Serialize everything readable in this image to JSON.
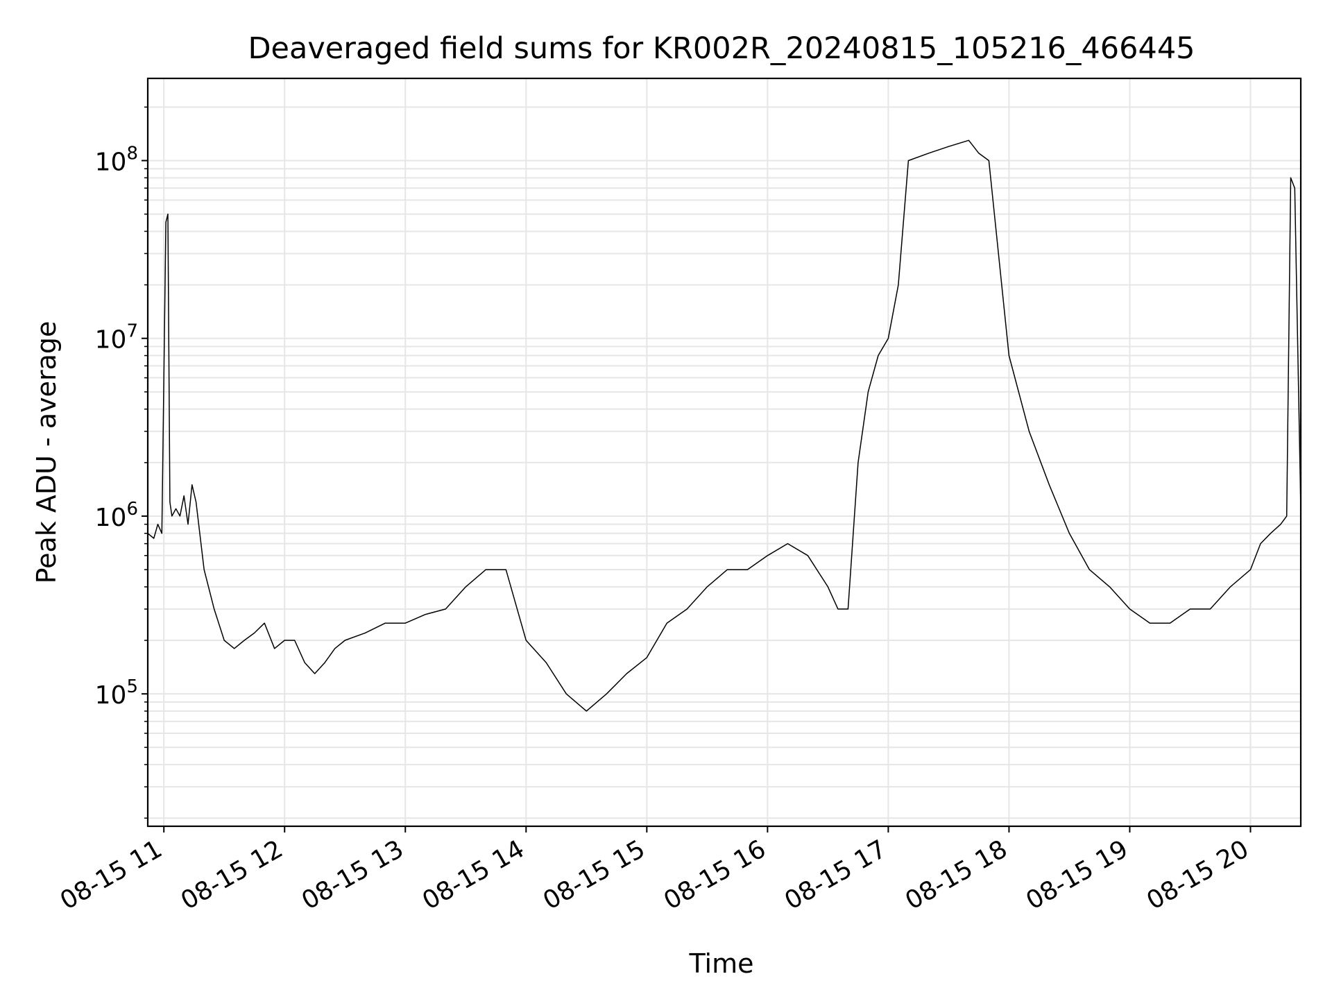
{
  "chart_data": {
    "type": "line",
    "title": "Deaveraged field sums for KR002R_20240815_105216_466445",
    "xlabel": "Time",
    "ylabel": "Peak ADU - average",
    "yscale": "log",
    "xlim": [
      "08-15 10:52",
      "08-15 20:25"
    ],
    "ylim": [
      18000,
      290000000
    ],
    "x_ticks": [
      "08-15 11",
      "08-15 12",
      "08-15 13",
      "08-15 14",
      "08-15 15",
      "08-15 16",
      "08-15 17",
      "08-15 18",
      "08-15 19",
      "08-15 20"
    ],
    "y_ticks": [
      {
        "value": 100000,
        "base": "10",
        "exp": "5"
      },
      {
        "value": 1000000,
        "base": "10",
        "exp": "6"
      },
      {
        "value": 10000000,
        "base": "10",
        "exp": "7"
      },
      {
        "value": 100000000,
        "base": "10",
        "exp": "8"
      }
    ],
    "grid": true,
    "line_color": "#000000",
    "series": [
      {
        "x": [
          "08-15 10:52",
          "08-15 10:55",
          "08-15 10:57",
          "08-15 10:59",
          "08-15 11:01",
          "08-15 11:02",
          "08-15 11:03",
          "08-15 11:04",
          "08-15 11:06",
          "08-15 11:08",
          "08-15 11:10",
          "08-15 11:12",
          "08-15 11:14",
          "08-15 11:16",
          "08-15 11:20",
          "08-15 11:25",
          "08-15 11:30",
          "08-15 11:35",
          "08-15 11:40",
          "08-15 11:45",
          "08-15 11:50",
          "08-15 11:55",
          "08-15 12:00",
          "08-15 12:05",
          "08-15 12:10",
          "08-15 12:15",
          "08-15 12:20",
          "08-15 12:25",
          "08-15 12:30",
          "08-15 12:40",
          "08-15 12:50",
          "08-15 13:00",
          "08-15 13:10",
          "08-15 13:20",
          "08-15 13:30",
          "08-15 13:40",
          "08-15 13:50",
          "08-15 14:00",
          "08-15 14:10",
          "08-15 14:20",
          "08-15 14:30",
          "08-15 14:40",
          "08-15 14:50",
          "08-15 15:00",
          "08-15 15:10",
          "08-15 15:20",
          "08-15 15:30",
          "08-15 15:40",
          "08-15 15:50",
          "08-15 16:00",
          "08-15 16:10",
          "08-15 16:20",
          "08-15 16:30",
          "08-15 16:35",
          "08-15 16:40",
          "08-15 16:45",
          "08-15 16:50",
          "08-15 16:55",
          "08-15 17:00",
          "08-15 17:05",
          "08-15 17:10",
          "08-15 17:20",
          "08-15 17:30",
          "08-15 17:40",
          "08-15 17:45",
          "08-15 17:50",
          "08-15 18:00",
          "08-15 18:10",
          "08-15 18:20",
          "08-15 18:30",
          "08-15 18:40",
          "08-15 18:50",
          "08-15 19:00",
          "08-15 19:10",
          "08-15 19:20",
          "08-15 19:30",
          "08-15 19:40",
          "08-15 19:50",
          "08-15 20:00",
          "08-15 20:05",
          "08-15 20:10",
          "08-15 20:15",
          "08-15 20:18",
          "08-15 20:20",
          "08-15 20:22",
          "08-15 20:25"
        ],
        "y": [
          800000,
          750000,
          900000,
          800000,
          45000000,
          50000000,
          1200000,
          1000000,
          1100000,
          1000000,
          1300000,
          900000,
          1500000,
          1200000,
          500000,
          300000,
          200000,
          180000,
          200000,
          220000,
          250000,
          180000,
          200000,
          200000,
          150000,
          130000,
          150000,
          180000,
          200000,
          220000,
          250000,
          250000,
          280000,
          300000,
          400000,
          500000,
          500000,
          200000,
          150000,
          100000,
          80000,
          100000,
          130000,
          160000,
          250000,
          300000,
          400000,
          500000,
          500000,
          600000,
          700000,
          600000,
          400000,
          300000,
          300000,
          2000000,
          5000000,
          8000000,
          10000000,
          20000000,
          100000000,
          110000000,
          120000000,
          130000000,
          110000000,
          100000000,
          8000000,
          3000000,
          1500000,
          800000,
          500000,
          400000,
          300000,
          250000,
          250000,
          300000,
          300000,
          400000,
          500000,
          700000,
          800000,
          900000,
          1000000,
          80000000,
          70000000,
          1100000
        ]
      }
    ]
  }
}
